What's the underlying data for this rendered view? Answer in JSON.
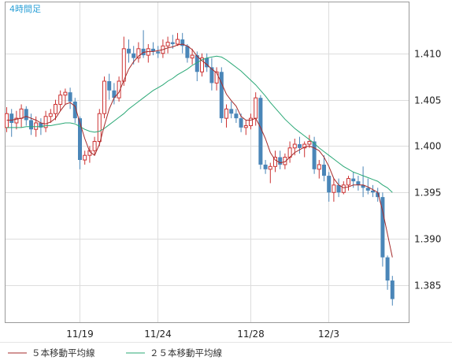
{
  "colors": {
    "up": "#cc3333",
    "down": "#4a86b8",
    "ma5": "#a52a2a",
    "ma25": "#2aa876",
    "grid": "#dddddd",
    "title": "#2a9fd6"
  },
  "chart_data": {
    "type": "candlestick",
    "title": "4時間足",
    "ylim": [
      1.381,
      1.4155
    ],
    "y_ticks": [
      "1.410",
      "1.405",
      "1.400",
      "1.395",
      "1.390",
      "1.385"
    ],
    "x_ticks": [
      "11/19",
      "11/24",
      "11/28",
      "12/3"
    ],
    "grid": true,
    "legend_position": "bottom-left",
    "series": [
      {
        "name": "５本移動平均線",
        "color": "#a52a2a"
      },
      {
        "name": "２５本移動平均線",
        "color": "#2aa876"
      }
    ],
    "candles": [
      [
        1.402,
        1.4042,
        1.4015,
        1.4035
      ],
      [
        1.4035,
        1.404,
        1.401,
        1.4025
      ],
      [
        1.4025,
        1.4038,
        1.4018,
        1.403
      ],
      [
        1.403,
        1.4045,
        1.402,
        1.404
      ],
      [
        1.404,
        1.4043,
        1.4022,
        1.4028
      ],
      [
        1.4028,
        1.4035,
        1.4012,
        1.4018
      ],
      [
        1.4018,
        1.4032,
        1.401,
        1.4025
      ],
      [
        1.4025,
        1.403,
        1.4012,
        1.402
      ],
      [
        1.402,
        1.4038,
        1.4015,
        1.4032
      ],
      [
        1.4032,
        1.404,
        1.4025,
        1.4035
      ],
      [
        1.4035,
        1.405,
        1.4028,
        1.4045
      ],
      [
        1.4045,
        1.406,
        1.4038,
        1.4055
      ],
      [
        1.4055,
        1.4062,
        1.4045,
        1.4058
      ],
      [
        1.4058,
        1.4063,
        1.404,
        1.4048
      ],
      [
        1.4048,
        1.4052,
        1.4025,
        1.403
      ],
      [
        1.403,
        1.4032,
        1.3975,
        1.3985
      ],
      [
        1.3985,
        1.3995,
        1.398,
        1.399
      ],
      [
        1.399,
        1.4,
        1.3982,
        1.3995
      ],
      [
        1.3995,
        1.401,
        1.399,
        1.4005
      ],
      [
        1.4005,
        1.404,
        1.4,
        1.4035
      ],
      [
        1.4035,
        1.4075,
        1.403,
        1.407
      ],
      [
        1.407,
        1.4078,
        1.405,
        1.406
      ],
      [
        1.406,
        1.4068,
        1.4045,
        1.4052
      ],
      [
        1.4052,
        1.4075,
        1.4048,
        1.407
      ],
      [
        1.407,
        1.4118,
        1.4065,
        1.4105
      ],
      [
        1.4105,
        1.4115,
        1.409,
        1.41
      ],
      [
        1.41,
        1.4108,
        1.4088,
        1.4095
      ],
      [
        1.4095,
        1.4112,
        1.409,
        1.4105
      ],
      [
        1.4105,
        1.4125,
        1.4095,
        1.4098
      ],
      [
        1.4098,
        1.411,
        1.409,
        1.4105
      ],
      [
        1.4105,
        1.4112,
        1.4098,
        1.4102
      ],
      [
        1.4102,
        1.4108,
        1.4095,
        1.41
      ],
      [
        1.41,
        1.4115,
        1.4095,
        1.4108
      ],
      [
        1.4108,
        1.4118,
        1.41,
        1.4112
      ],
      [
        1.4112,
        1.412,
        1.4105,
        1.411
      ],
      [
        1.411,
        1.4122,
        1.4108,
        1.4115
      ],
      [
        1.4115,
        1.4122,
        1.41,
        1.4108
      ],
      [
        1.4108,
        1.411,
        1.409,
        1.4095
      ],
      [
        1.4095,
        1.4105,
        1.4088,
        1.4098
      ],
      [
        1.4098,
        1.4102,
        1.407,
        1.408
      ],
      [
        1.408,
        1.41,
        1.4075,
        1.4095
      ],
      [
        1.4095,
        1.41,
        1.408,
        1.4085
      ],
      [
        1.4085,
        1.4095,
        1.406,
        1.4068
      ],
      [
        1.4068,
        1.4085,
        1.406,
        1.408
      ],
      [
        1.408,
        1.4085,
        1.4025,
        1.403
      ],
      [
        1.403,
        1.4045,
        1.402,
        1.404
      ],
      [
        1.404,
        1.4048,
        1.403,
        1.4035
      ],
      [
        1.4035,
        1.404,
        1.4025,
        1.403
      ],
      [
        1.403,
        1.4035,
        1.4015,
        1.402
      ],
      [
        1.402,
        1.4028,
        1.4012,
        1.4022
      ],
      [
        1.4022,
        1.4035,
        1.4018,
        1.403
      ],
      [
        1.403,
        1.4058,
        1.4022,
        1.4052
      ],
      [
        1.4052,
        1.4055,
        1.3975,
        1.398
      ],
      [
        1.398,
        1.3985,
        1.397,
        1.3975
      ],
      [
        1.3975,
        1.3982,
        1.396,
        1.3978
      ],
      [
        1.3978,
        1.3995,
        1.3972,
        1.3988
      ],
      [
        1.3988,
        1.3995,
        1.3975,
        1.398
      ],
      [
        1.398,
        1.3992,
        1.3975,
        1.3988
      ],
      [
        1.3988,
        1.4005,
        1.3982,
        1.3998
      ],
      [
        1.3998,
        1.4008,
        1.399,
        1.4002
      ],
      [
        1.4002,
        1.401,
        1.3992,
        1.3998
      ],
      [
        1.3998,
        1.4005,
        1.3988,
        1.4002
      ],
      [
        1.4002,
        1.4012,
        1.3998,
        1.4005
      ],
      [
        1.4005,
        1.401,
        1.397,
        1.3975
      ],
      [
        1.3975,
        1.3985,
        1.3965,
        1.398
      ],
      [
        1.398,
        1.399,
        1.3962,
        1.3968
      ],
      [
        1.3968,
        1.3972,
        1.394,
        1.395
      ],
      [
        1.395,
        1.3965,
        1.394,
        1.3958
      ],
      [
        1.3958,
        1.3965,
        1.3945,
        1.395
      ],
      [
        1.395,
        1.3962,
        1.3948,
        1.3958
      ],
      [
        1.3958,
        1.3968,
        1.3952,
        1.3965
      ],
      [
        1.3965,
        1.3972,
        1.3955,
        1.3962
      ],
      [
        1.3962,
        1.3968,
        1.3952,
        1.3958
      ],
      [
        1.3958,
        1.3978,
        1.3945,
        1.3955
      ],
      [
        1.3955,
        1.3965,
        1.3948,
        1.3952
      ],
      [
        1.3952,
        1.3958,
        1.3945,
        1.395
      ],
      [
        1.395,
        1.3955,
        1.394,
        1.3945
      ],
      [
        1.3945,
        1.395,
        1.387,
        1.388
      ],
      [
        1.388,
        1.3882,
        1.3845,
        1.3855
      ],
      [
        1.3855,
        1.386,
        1.3828,
        1.3835
      ]
    ],
    "ma5": [
      1.4028,
      1.4028,
      1.4029,
      1.403,
      1.4032,
      1.403,
      1.4028,
      1.4025,
      1.4024,
      1.4026,
      1.403,
      1.4038,
      1.4045,
      1.4047,
      1.4043,
      1.4025,
      1.4008,
      1.3994,
      1.399,
      1.4002,
      1.4022,
      1.404,
      1.4052,
      1.4058,
      1.4071,
      1.4083,
      1.4091,
      1.4097,
      1.4101,
      1.4102,
      1.4102,
      1.4103,
      1.4104,
      1.4106,
      1.4107,
      1.4109,
      1.411,
      1.4108,
      1.4104,
      1.4097,
      1.4092,
      1.4088,
      1.4083,
      1.4079,
      1.4068,
      1.4056,
      1.4049,
      1.4043,
      1.4032,
      1.4028,
      1.4028,
      1.403,
      1.402,
      1.4008,
      1.3993,
      1.3985,
      1.3982,
      1.3983,
      1.3988,
      1.3993,
      1.3996,
      1.3999,
      1.4,
      1.3998,
      1.3995,
      1.3988,
      1.3978,
      1.3965,
      1.3958,
      1.3955,
      1.3956,
      1.3958,
      1.3958,
      1.3958,
      1.3956,
      1.3953,
      1.395,
      1.393,
      1.3905,
      1.388
    ],
    "ma25": [
      1.402,
      1.402,
      1.402,
      1.402,
      1.4021,
      1.4021,
      1.4021,
      1.4021,
      1.4022,
      1.4022,
      1.4023,
      1.4024,
      1.4025,
      1.4025,
      1.4024,
      1.4021,
      1.4018,
      1.4016,
      1.4015,
      1.4016,
      1.4019,
      1.4023,
      1.4027,
      1.4031,
      1.4035,
      1.404,
      1.4044,
      1.4048,
      1.4052,
      1.4056,
      1.406,
      1.4063,
      1.4066,
      1.407,
      1.4073,
      1.4077,
      1.408,
      1.4083,
      1.4087,
      1.409,
      1.4093,
      1.4095,
      1.4096,
      1.4097,
      1.4096,
      1.4093,
      1.4089,
      1.4085,
      1.4081,
      1.4076,
      1.4071,
      1.4066,
      1.406,
      1.4054,
      1.4047,
      1.4041,
      1.4035,
      1.4029,
      1.4024,
      1.4019,
      1.4015,
      1.4011,
      1.4007,
      1.4003,
      1.3998,
      1.3994,
      1.399,
      1.3986,
      1.3982,
      1.3978,
      1.3975,
      1.3972,
      1.397,
      1.3968,
      1.3966,
      1.3964,
      1.3962,
      1.3958,
      1.3955,
      1.395
    ]
  }
}
